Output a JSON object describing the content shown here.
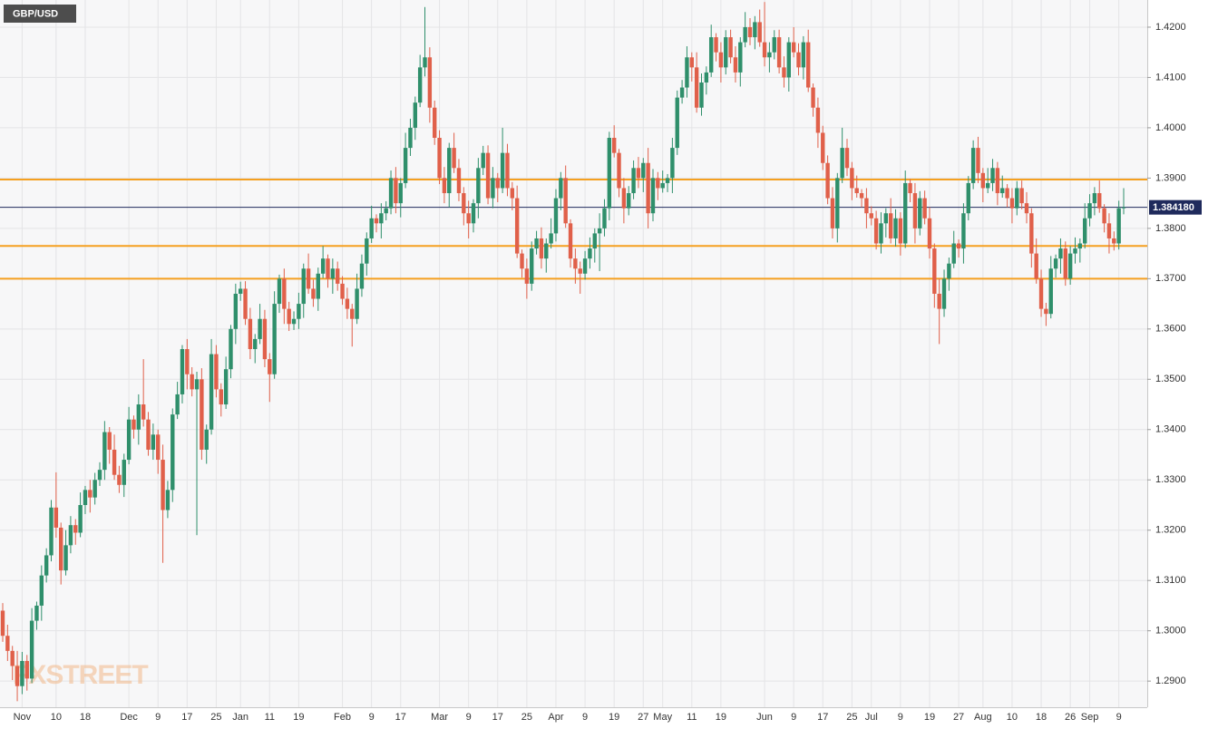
{
  "chart_data": {
    "type": "candlestick",
    "title": "GBP/USD",
    "watermark": "FXSTREET",
    "up_color": "#2f8f6b",
    "down_color": "#e0604a",
    "grid": true,
    "ylim": [
      1.2848,
      1.4254
    ],
    "yticks": [
      {
        "value": 1.29,
        "label": "1.2900"
      },
      {
        "value": 1.3,
        "label": "1.3000"
      },
      {
        "value": 1.31,
        "label": "1.3100"
      },
      {
        "value": 1.32,
        "label": "1.3200"
      },
      {
        "value": 1.33,
        "label": "1.3300"
      },
      {
        "value": 1.34,
        "label": "1.3400"
      },
      {
        "value": 1.35,
        "label": "1.3500"
      },
      {
        "value": 1.36,
        "label": "1.3600"
      },
      {
        "value": 1.37,
        "label": "1.3700"
      },
      {
        "value": 1.38,
        "label": "1.3800"
      },
      {
        "value": 1.39,
        "label": "1.3900"
      },
      {
        "value": 1.4,
        "label": "1.4000"
      },
      {
        "value": 1.41,
        "label": "1.4100"
      },
      {
        "value": 1.42,
        "label": "1.4200"
      }
    ],
    "levels": {
      "values": [
        1.3897,
        1.3765,
        1.37
      ],
      "color": "#f5a020"
    },
    "last_price": {
      "value": 1.38418,
      "label": "1.384180",
      "color": "#1f2a5c"
    },
    "categories": [
      null,
      null,
      null,
      null,
      "Nov",
      null,
      null,
      null,
      null,
      null,
      null,
      "10",
      null,
      null,
      null,
      null,
      null,
      "18",
      null,
      null,
      null,
      null,
      null,
      null,
      null,
      null,
      "Dec",
      null,
      null,
      null,
      null,
      null,
      "9",
      null,
      null,
      null,
      null,
      null,
      "17",
      null,
      null,
      null,
      null,
      null,
      "25",
      null,
      null,
      null,
      null,
      "Jan",
      null,
      null,
      null,
      null,
      null,
      "11",
      null,
      null,
      null,
      null,
      null,
      "19",
      null,
      null,
      null,
      null,
      null,
      null,
      null,
      null,
      "Feb",
      null,
      null,
      null,
      null,
      null,
      "9",
      null,
      null,
      null,
      null,
      null,
      "17",
      null,
      null,
      null,
      null,
      null,
      null,
      null,
      "Mar",
      null,
      null,
      null,
      null,
      null,
      "9",
      null,
      null,
      null,
      null,
      null,
      "17",
      null,
      null,
      null,
      null,
      null,
      "25",
      null,
      null,
      null,
      null,
      null,
      "Apr",
      null,
      null,
      null,
      null,
      null,
      "9",
      null,
      null,
      null,
      null,
      null,
      "19",
      null,
      null,
      null,
      null,
      null,
      "27",
      null,
      null,
      null,
      "May",
      null,
      null,
      null,
      null,
      null,
      "11",
      null,
      null,
      null,
      null,
      null,
      "19",
      null,
      null,
      null,
      null,
      null,
      null,
      null,
      null,
      "Jun",
      null,
      null,
      null,
      null,
      null,
      "9",
      null,
      null,
      null,
      null,
      null,
      "17",
      null,
      null,
      null,
      null,
      null,
      "25",
      null,
      null,
      null,
      "Jul",
      null,
      null,
      null,
      null,
      null,
      "9",
      null,
      null,
      null,
      null,
      null,
      "19",
      null,
      null,
      null,
      null,
      null,
      "27",
      null,
      null,
      null,
      null,
      "Aug",
      null,
      null,
      null,
      null,
      null,
      "10",
      null,
      null,
      null,
      null,
      null,
      "18",
      null,
      null,
      null,
      null,
      null,
      "26",
      null,
      null,
      null,
      "Sep",
      null,
      null,
      null,
      null,
      null,
      "9",
      null
    ],
    "open": [
      1.304,
      1.299,
      1.296,
      1.293,
      1.289,
      1.294,
      1.2905,
      1.302,
      1.305,
      1.311,
      1.315,
      1.3245,
      1.3205,
      1.312,
      1.317,
      1.321,
      1.3195,
      1.325,
      1.328,
      1.3265,
      1.33,
      1.332,
      1.3395,
      1.336,
      1.331,
      1.329,
      1.334,
      1.342,
      1.34,
      1.345,
      1.342,
      1.336,
      1.339,
      1.334,
      1.324,
      1.328,
      1.343,
      1.347,
      1.356,
      1.351,
      1.348,
      1.35,
      1.336,
      1.34,
      1.355,
      1.348,
      1.345,
      1.352,
      1.36,
      1.367,
      1.368,
      1.362,
      1.356,
      1.358,
      1.362,
      1.354,
      1.351,
      1.365,
      1.37,
      1.364,
      1.361,
      1.362,
      1.365,
      1.372,
      1.368,
      1.366,
      1.371,
      1.374,
      1.37,
      1.372,
      1.369,
      1.366,
      1.364,
      1.362,
      1.368,
      1.373,
      1.378,
      1.382,
      1.381,
      1.383,
      1.384,
      1.39,
      1.385,
      1.389,
      1.396,
      1.4,
      1.405,
      1.412,
      1.414,
      1.404,
      1.398,
      1.39,
      1.387,
      1.396,
      1.392,
      1.387,
      1.383,
      1.381,
      1.385,
      1.392,
      1.395,
      1.386,
      1.39,
      1.388,
      1.395,
      1.388,
      1.386,
      1.375,
      1.372,
      1.369,
      1.376,
      1.378,
      1.374,
      1.377,
      1.379,
      1.386,
      1.39,
      1.381,
      1.374,
      1.372,
      1.371,
      1.374,
      1.376,
      1.379,
      1.38,
      1.384,
      1.398,
      1.395,
      1.388,
      1.384,
      1.387,
      1.392,
      1.39,
      1.393,
      1.383,
      1.39,
      1.388,
      1.389,
      1.39,
      1.396,
      1.406,
      1.408,
      1.414,
      1.412,
      1.404,
      1.409,
      1.411,
      1.418,
      1.415,
      1.412,
      1.418,
      1.414,
      1.411,
      1.417,
      1.42,
      1.418,
      1.421,
      1.417,
      1.414,
      1.415,
      1.418,
      1.412,
      1.41,
      1.417,
      1.415,
      1.412,
      1.417,
      1.408,
      1.404,
      1.399,
      1.393,
      1.386,
      1.38,
      1.39,
      1.396,
      1.392,
      1.388,
      1.387,
      1.386,
      1.383,
      1.382,
      1.377,
      1.381,
      1.383,
      1.378,
      1.382,
      1.377,
      1.389,
      1.387,
      1.38,
      1.386,
      1.382,
      1.376,
      1.367,
      1.364,
      1.37,
      1.373,
      1.377,
      1.376,
      1.383,
      1.389,
      1.396,
      1.391,
      1.388,
      1.389,
      1.392,
      1.387,
      1.388,
      1.386,
      1.384,
      1.388,
      1.385,
      1.383,
      1.375,
      1.37,
      1.364,
      1.363,
      1.372,
      1.374,
      1.376,
      1.37,
      1.375,
      1.376,
      1.377,
      1.382,
      1.385,
      1.387,
      1.384,
      1.381,
      1.378,
      1.377,
      1.384
    ],
    "high": [
      1.3055,
      1.3012,
      1.297,
      1.296,
      1.2958,
      1.2952,
      1.3045,
      1.3058,
      1.313,
      1.3164,
      1.326,
      1.3315,
      1.3215,
      1.32,
      1.3228,
      1.3222,
      1.3275,
      1.3288,
      1.33,
      1.3314,
      1.3335,
      1.3417,
      1.3405,
      1.339,
      1.3328,
      1.3352,
      1.3445,
      1.3428,
      1.347,
      1.354,
      1.3435,
      1.3412,
      1.34,
      1.337,
      1.3298,
      1.3442,
      1.3495,
      1.3568,
      1.358,
      1.3524,
      1.3515,
      1.3522,
      1.341,
      1.358,
      1.3568,
      1.3492,
      1.3545,
      1.3608,
      1.369,
      1.3694,
      1.3695,
      1.3642,
      1.359,
      1.365,
      1.3638,
      1.3552,
      1.3675,
      1.3708,
      1.372,
      1.3654,
      1.3635,
      1.3672,
      1.373,
      1.375,
      1.3698,
      1.3722,
      1.3765,
      1.3748,
      1.374,
      1.3734,
      1.3705,
      1.3682,
      1.365,
      1.371,
      1.3748,
      1.3792,
      1.3845,
      1.3828,
      1.385,
      1.3854,
      1.3915,
      1.3922,
      1.39,
      1.399,
      1.4018,
      1.4062,
      1.4145,
      1.424,
      1.416,
      1.4054,
      1.3995,
      1.3922,
      1.397,
      1.399,
      1.3938,
      1.3882,
      1.3855,
      1.3858,
      1.394,
      1.3964,
      1.3965,
      1.3922,
      1.391,
      1.4,
      1.3968,
      1.3892,
      1.3885,
      1.3758,
      1.374,
      1.3774,
      1.3795,
      1.3802,
      1.378,
      1.382,
      1.3878,
      1.3912,
      1.3925,
      1.3818,
      1.376,
      1.3734,
      1.3755,
      1.3782,
      1.38,
      1.383,
      1.3858,
      1.3992,
      1.4005,
      1.3958,
      1.39,
      1.3884,
      1.3935,
      1.3942,
      1.394,
      1.396,
      1.3918,
      1.3912,
      1.3915,
      1.3908,
      1.398,
      1.4074,
      1.4095,
      1.4162,
      1.415,
      1.415,
      1.4108,
      1.4122,
      1.4205,
      1.4188,
      1.417,
      1.4194,
      1.4195,
      1.4162,
      1.418,
      1.423,
      1.4218,
      1.4222,
      1.4235,
      1.425,
      1.417,
      1.4194,
      1.4195,
      1.4142,
      1.418,
      1.42,
      1.4168,
      1.4182,
      1.4195,
      1.4088,
      1.406,
      1.4004,
      1.3945,
      1.3882,
      1.391,
      1.4,
      1.3978,
      1.3932,
      1.3905,
      1.3878,
      1.388,
      1.3844,
      1.3835,
      1.3832,
      1.384,
      1.386,
      1.3838,
      1.3832,
      1.3915,
      1.3898,
      1.389,
      1.3874,
      1.3875,
      1.3842,
      1.377,
      1.37,
      1.3718,
      1.3742,
      1.3795,
      1.3778,
      1.385,
      1.3904,
      1.3975,
      1.3982,
      1.392,
      1.392,
      1.3938,
      1.3932,
      1.3905,
      1.3888,
      1.388,
      1.3894,
      1.3895,
      1.3872,
      1.384,
      1.378,
      1.3718,
      1.3652,
      1.3745,
      1.3748,
      1.378,
      1.3774,
      1.3765,
      1.3782,
      1.378,
      1.385,
      1.3868,
      1.3882,
      1.3895,
      1.3848,
      1.383,
      1.3794,
      1.3855,
      1.388
    ],
    "low": [
      1.2978,
      1.294,
      1.2902,
      1.286,
      1.2874,
      1.2881,
      1.2896,
      1.3002,
      1.302,
      1.3096,
      1.3138,
      1.3185,
      1.3092,
      1.311,
      1.3154,
      1.3171,
      1.3186,
      1.3232,
      1.3235,
      1.3251,
      1.3288,
      1.33,
      1.3332,
      1.33,
      1.3274,
      1.3266,
      1.3331,
      1.3382,
      1.337,
      1.3406,
      1.3348,
      1.334,
      1.3312,
      1.3135,
      1.3224,
      1.3256,
      1.3421,
      1.3452,
      1.348,
      1.3466,
      1.319,
      1.334,
      1.3332,
      1.339,
      1.3464,
      1.3426,
      1.3441,
      1.3502,
      1.357,
      1.3656,
      1.3608,
      1.354,
      1.3532,
      1.357,
      1.3524,
      1.3455,
      1.3501,
      1.3632,
      1.361,
      1.3596,
      1.3598,
      1.36,
      1.3622,
      1.367,
      1.3644,
      1.3636,
      1.3701,
      1.3682,
      1.367,
      1.3676,
      1.3648,
      1.362,
      1.3565,
      1.361,
      1.3664,
      1.3706,
      1.3771,
      1.3792,
      1.378,
      1.3816,
      1.3828,
      1.383,
      1.3822,
      1.388,
      1.3944,
      1.3976,
      1.4041,
      1.4102,
      1.401,
      1.3966,
      1.3888,
      1.385,
      1.3842,
      1.391,
      1.3854,
      1.3806,
      1.378,
      1.3792,
      1.382,
      1.3906,
      1.3848,
      1.384,
      1.3852,
      1.387,
      1.3864,
      1.3836,
      1.3741,
      1.3702,
      1.366,
      1.3676,
      1.3748,
      1.372,
      1.3712,
      1.376,
      1.3774,
      1.3836,
      1.3801,
      1.3722,
      1.369,
      1.367,
      1.3698,
      1.372,
      1.3732,
      1.3715,
      1.3784,
      1.3816,
      1.3941,
      1.3862,
      1.381,
      1.3826,
      1.3858,
      1.388,
      1.3872,
      1.38,
      1.3814,
      1.3856,
      1.3871,
      1.3872,
      1.387,
      1.3946,
      1.4048,
      1.406,
      1.4092,
      1.403,
      1.4024,
      1.4066,
      1.4101,
      1.4132,
      1.409,
      1.4106,
      1.4128,
      1.409,
      1.4082,
      1.416,
      1.4164,
      1.4156,
      1.4161,
      1.4122,
      1.411,
      1.4136,
      1.4108,
      1.408,
      1.4072,
      1.414,
      1.4104,
      1.4096,
      1.4071,
      1.4022,
      1.396,
      1.3916,
      1.3848,
      1.378,
      1.3772,
      1.389,
      1.3904,
      1.3856,
      1.3861,
      1.3842,
      1.38,
      1.3806,
      1.3758,
      1.375,
      1.3782,
      1.377,
      1.3764,
      1.3746,
      1.3761,
      1.3852,
      1.377,
      1.3786,
      1.3808,
      1.374,
      1.3642,
      1.357,
      1.3624,
      1.3676,
      1.3721,
      1.3742,
      1.373,
      1.3816,
      1.3878,
      1.389,
      1.3852,
      1.387,
      1.3874,
      1.3846,
      1.3861,
      1.3842,
      1.381,
      1.3826,
      1.3838,
      1.381,
      1.3722,
      1.369,
      1.3624,
      1.3606,
      1.3621,
      1.3702,
      1.371,
      1.3686,
      1.3688,
      1.373,
      1.3732,
      1.376,
      1.3804,
      1.3826,
      1.3831,
      1.3792,
      1.375,
      1.3756,
      1.3758,
      1.3828
    ],
    "close": [
      1.299,
      1.296,
      1.293,
      1.289,
      1.294,
      1.2905,
      1.302,
      1.305,
      1.311,
      1.315,
      1.3245,
      1.3205,
      1.312,
      1.317,
      1.321,
      1.3195,
      1.325,
      1.328,
      1.3265,
      1.33,
      1.332,
      1.3395,
      1.336,
      1.331,
      1.329,
      1.334,
      1.342,
      1.34,
      1.345,
      1.342,
      1.336,
      1.339,
      1.334,
      1.324,
      1.328,
      1.343,
      1.347,
      1.356,
      1.351,
      1.348,
      1.35,
      1.336,
      1.34,
      1.355,
      1.348,
      1.345,
      1.352,
      1.36,
      1.367,
      1.368,
      1.362,
      1.356,
      1.358,
      1.362,
      1.354,
      1.351,
      1.365,
      1.37,
      1.364,
      1.361,
      1.362,
      1.365,
      1.372,
      1.368,
      1.366,
      1.371,
      1.374,
      1.37,
      1.372,
      1.369,
      1.366,
      1.364,
      1.362,
      1.368,
      1.373,
      1.378,
      1.382,
      1.381,
      1.383,
      1.384,
      1.39,
      1.385,
      1.389,
      1.396,
      1.4,
      1.405,
      1.412,
      1.414,
      1.404,
      1.398,
      1.39,
      1.387,
      1.396,
      1.392,
      1.387,
      1.383,
      1.381,
      1.385,
      1.392,
      1.395,
      1.386,
      1.39,
      1.388,
      1.395,
      1.388,
      1.386,
      1.375,
      1.372,
      1.369,
      1.376,
      1.378,
      1.374,
      1.377,
      1.379,
      1.386,
      1.39,
      1.381,
      1.374,
      1.372,
      1.371,
      1.374,
      1.376,
      1.379,
      1.38,
      1.384,
      1.398,
      1.395,
      1.388,
      1.384,
      1.387,
      1.392,
      1.39,
      1.393,
      1.383,
      1.39,
      1.388,
      1.389,
      1.39,
      1.396,
      1.406,
      1.408,
      1.414,
      1.412,
      1.404,
      1.409,
      1.411,
      1.418,
      1.415,
      1.412,
      1.418,
      1.414,
      1.411,
      1.417,
      1.42,
      1.418,
      1.421,
      1.417,
      1.414,
      1.415,
      1.418,
      1.412,
      1.41,
      1.417,
      1.415,
      1.412,
      1.417,
      1.408,
      1.404,
      1.399,
      1.393,
      1.386,
      1.38,
      1.39,
      1.396,
      1.392,
      1.388,
      1.387,
      1.386,
      1.383,
      1.382,
      1.377,
      1.381,
      1.383,
      1.378,
      1.382,
      1.377,
      1.389,
      1.387,
      1.38,
      1.386,
      1.382,
      1.376,
      1.367,
      1.364,
      1.37,
      1.373,
      1.377,
      1.376,
      1.383,
      1.389,
      1.396,
      1.391,
      1.388,
      1.389,
      1.392,
      1.387,
      1.388,
      1.386,
      1.384,
      1.388,
      1.385,
      1.383,
      1.375,
      1.37,
      1.364,
      1.363,
      1.372,
      1.374,
      1.376,
      1.37,
      1.375,
      1.376,
      1.377,
      1.382,
      1.385,
      1.387,
      1.384,
      1.381,
      1.378,
      1.377,
      1.384,
      1.38418
    ]
  }
}
